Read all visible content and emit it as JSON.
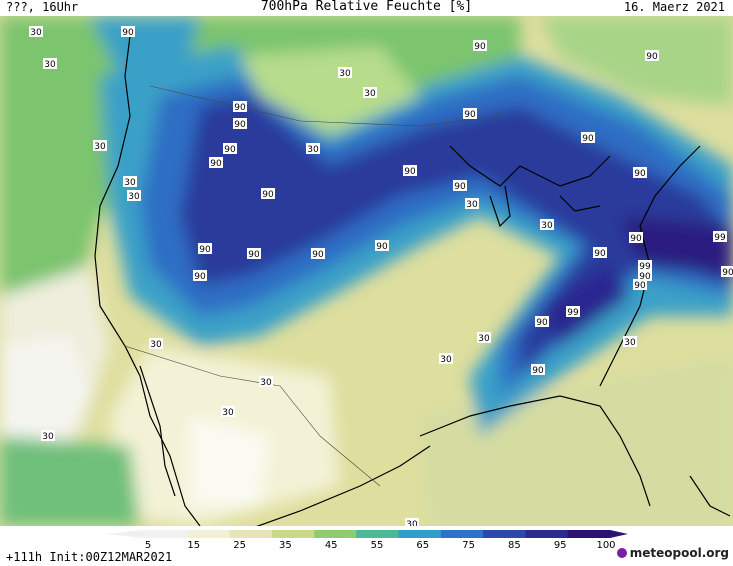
{
  "header": {
    "left": "???, 16Uhr",
    "title": "700hPa Relative Feuchte [%]",
    "right": "16. Maerz 2021"
  },
  "footer": {
    "run_info": "+111h Init:00Z12MAR2021",
    "logo_text": "meteopool.org"
  },
  "colorbar": {
    "ticks": [
      "5",
      "15",
      "25",
      "35",
      "45",
      "55",
      "65",
      "75",
      "85",
      "95",
      "100"
    ],
    "colors": [
      "#f2f2f2",
      "#f3f0d8",
      "#e6e6b4",
      "#c9d98a",
      "#8ecc72",
      "#4cb896",
      "#2f9ec8",
      "#2f72c8",
      "#2a4aa8",
      "#2b2a8f",
      "#2a1470"
    ]
  },
  "map_labels": {
    "values": [
      "30",
      "30",
      "30",
      "90",
      "90",
      "90",
      "90",
      "30",
      "90",
      "90",
      "90",
      "90",
      "30",
      "90",
      "90",
      "30",
      "30",
      "90",
      "90",
      "90",
      "90",
      "30",
      "90",
      "90",
      "90",
      "90",
      "90",
      "30",
      "99",
      "90",
      "99",
      "90",
      "90",
      "30",
      "30",
      "30",
      "30",
      "30",
      "30",
      "30",
      "90",
      "30",
      "90",
      "90",
      "99",
      "30"
    ]
  }
}
